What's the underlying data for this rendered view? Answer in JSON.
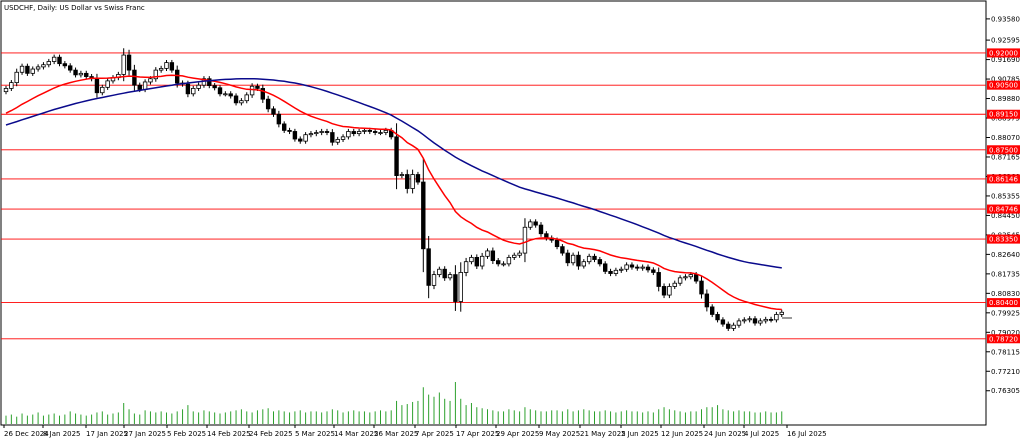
{
  "chart_data": {
    "type": "candlestick",
    "title": "USDCHF, Daily:  US Dollar vs Swiss Franc",
    "ylim": [
      0.7555,
      0.939
    ],
    "y_ticks": [
      "0.93580",
      "0.92595",
      "0.91690",
      "0.90785",
      "0.89880",
      "0.88975",
      "0.88070",
      "0.87165",
      "0.86260",
      "0.85355",
      "0.84450",
      "0.83545",
      "0.82640",
      "0.81735",
      "0.80830",
      "0.79925",
      "0.79020",
      "0.78115",
      "0.77210",
      "0.76305"
    ],
    "x_ticks": [
      "26 Dec 2024",
      "8 Jan 2025",
      "17 Jan 2025",
      "27 Jan 2025",
      "5 Feb 2025",
      "14 Feb 2025",
      "24 Feb 2025",
      "5 Mar 2025",
      "14 Mar 2025",
      "26 Mar 2025",
      "7 Apr 2025",
      "17 Apr 2025",
      "29 Apr 2025",
      "9 May 2025",
      "21 May 2025",
      "2 Jun 2025",
      "12 Jun 2025",
      "24 Jun 2025",
      "4 Jul 2025",
      "16 Jul 2025"
    ],
    "levels": [
      {
        "label": "0.92000",
        "value": 0.92
      },
      {
        "label": "0.90500",
        "value": 0.905
      },
      {
        "label": "0.89150",
        "value": 0.8915
      },
      {
        "label": "0.87500",
        "value": 0.875
      },
      {
        "label": "0.86146",
        "value": 0.86146
      },
      {
        "label": "0.84746",
        "value": 0.84746
      },
      {
        "label": "0.83350",
        "value": 0.8335
      },
      {
        "label": "0.80400",
        "value": 0.804
      },
      {
        "label": "0.78720",
        "value": 0.7872
      }
    ],
    "price_close": [
      0.9035,
      0.9062,
      0.911,
      0.9138,
      0.9105,
      0.9125,
      0.9135,
      0.9145,
      0.916,
      0.918,
      0.915,
      0.914,
      0.912,
      0.9098,
      0.9105,
      0.909,
      0.908,
      0.9015,
      0.904,
      0.907,
      0.9085,
      0.91,
      0.919,
      0.912,
      0.905,
      0.903,
      0.9065,
      0.908,
      0.912,
      0.9128,
      0.9155,
      0.912,
      0.906,
      0.9055,
      0.901,
      0.9035,
      0.905,
      0.908,
      0.9048,
      0.9038,
      0.901,
      0.901,
      0.9,
      0.8968,
      0.8978,
      0.9005,
      0.9045,
      0.9035,
      0.8985,
      0.894,
      0.8915,
      0.887,
      0.884,
      0.8835,
      0.88,
      0.879,
      0.882,
      0.8825,
      0.883,
      0.8835,
      0.883,
      0.8785,
      0.8798,
      0.881,
      0.8835,
      0.8825,
      0.8835,
      0.884,
      0.8835,
      0.883,
      0.883,
      0.884,
      0.881,
      0.863,
      0.8635,
      0.857,
      0.8635,
      0.86,
      0.829,
      0.812,
      0.817,
      0.8195,
      0.8155,
      0.817,
      0.8045,
      0.818,
      0.823,
      0.825,
      0.821,
      0.8255,
      0.828,
      0.8235,
      0.822,
      0.822,
      0.825,
      0.826,
      0.827,
      0.839,
      0.8415,
      0.84,
      0.836,
      0.834,
      0.833,
      0.83,
      0.827,
      0.8225,
      0.826,
      0.821,
      0.823,
      0.8255,
      0.824,
      0.822,
      0.8185,
      0.8175,
      0.819,
      0.8195,
      0.8215,
      0.8205,
      0.82,
      0.8205,
      0.8192,
      0.818,
      0.8115,
      0.8075,
      0.8115,
      0.813,
      0.8155,
      0.816,
      0.817,
      0.814,
      0.808,
      0.802,
      0.7985,
      0.796,
      0.794,
      0.792,
      0.7935,
      0.7955,
      0.796,
      0.7965,
      0.7945,
      0.7955,
      0.7962,
      0.796,
      0.7985,
      0.7995
    ],
    "series": [
      {
        "name": "",
        "color": "#ff0000",
        "values": [
          0.892,
          0.8932,
          0.8946,
          0.8961,
          0.8974,
          0.8988,
          0.9001,
          0.9013,
          0.9025,
          0.9037,
          0.9047,
          0.9055,
          0.9062,
          0.9068,
          0.9073,
          0.9078,
          0.9082,
          0.9082,
          0.9082,
          0.9083,
          0.9085,
          0.9087,
          0.909,
          0.9092,
          0.9091,
          0.9088,
          0.9087,
          0.9086,
          0.9089,
          0.9091,
          0.9095,
          0.9096,
          0.9095,
          0.9093,
          0.9087,
          0.9083,
          0.9079,
          0.9076,
          0.9072,
          0.9068,
          0.9063,
          0.9057,
          0.905,
          0.9042,
          0.9036,
          0.9031,
          0.903,
          0.9028,
          0.9023,
          0.9014,
          0.9003,
          0.899,
          0.8975,
          0.896,
          0.8944,
          0.8929,
          0.8917,
          0.8906,
          0.8897,
          0.8889,
          0.8882,
          0.8871,
          0.8864,
          0.8858,
          0.8856,
          0.8853,
          0.8851,
          0.885,
          0.8849,
          0.8847,
          0.8845,
          0.8845,
          0.8842,
          0.8823,
          0.8806,
          0.8783,
          0.8769,
          0.8752,
          0.8711,
          0.8657,
          0.8614,
          0.8576,
          0.8538,
          0.8505,
          0.8463,
          0.8439,
          0.8422,
          0.8408,
          0.839,
          0.8377,
          0.8368,
          0.8355,
          0.8342,
          0.833,
          0.8322,
          0.8316,
          0.8312,
          0.832,
          0.833,
          0.8337,
          0.834,
          0.834,
          0.8339,
          0.8335,
          0.8326,
          0.8315,
          0.831,
          0.83,
          0.8293,
          0.829,
          0.8286,
          0.828,
          0.8271,
          0.8261,
          0.8254,
          0.8248,
          0.8245,
          0.824,
          0.8236,
          0.8233,
          0.8229,
          0.8224,
          0.8213,
          0.8199,
          0.819,
          0.8184,
          0.8181,
          0.8179,
          0.8178,
          0.8174,
          0.8164,
          0.815,
          0.8134,
          0.8116,
          0.8098,
          0.808,
          0.8066,
          0.8055,
          0.8046,
          0.8039,
          0.8031,
          0.8025,
          0.8019,
          0.8013,
          0.801,
          0.8008
        ]
      },
      {
        "name": "",
        "color": "#0a0a8c",
        "values": [
          0.8865,
          0.8873,
          0.8881,
          0.8889,
          0.8897,
          0.8905,
          0.8913,
          0.8921,
          0.8929,
          0.8937,
          0.8944,
          0.8951,
          0.8958,
          0.8965,
          0.8971,
          0.8977,
          0.8983,
          0.8988,
          0.8993,
          0.8998,
          0.9003,
          0.9008,
          0.9013,
          0.9018,
          0.9022,
          0.9026,
          0.903,
          0.9034,
          0.9038,
          0.9042,
          0.9046,
          0.905,
          0.9054,
          0.9057,
          0.906,
          0.9063,
          0.9066,
          0.9069,
          0.9071,
          0.9073,
          0.9075,
          0.9077,
          0.9078,
          0.9079,
          0.908,
          0.908,
          0.908,
          0.9079,
          0.9078,
          0.9076,
          0.9074,
          0.9071,
          0.9068,
          0.9064,
          0.906,
          0.9055,
          0.9049,
          0.9043,
          0.9036,
          0.9029,
          0.9021,
          0.9013,
          0.9005,
          0.8996,
          0.8987,
          0.8978,
          0.8969,
          0.896,
          0.8951,
          0.8942,
          0.8932,
          0.8922,
          0.8911,
          0.8897,
          0.8883,
          0.8868,
          0.8853,
          0.8838,
          0.882,
          0.8801,
          0.8782,
          0.8765,
          0.8748,
          0.8732,
          0.8716,
          0.8702,
          0.8689,
          0.8676,
          0.8664,
          0.8652,
          0.8641,
          0.863,
          0.8619,
          0.8608,
          0.8597,
          0.8587,
          0.8576,
          0.8568,
          0.8561,
          0.8554,
          0.8547,
          0.854,
          0.8533,
          0.8526,
          0.8518,
          0.851,
          0.8503,
          0.8495,
          0.8487,
          0.848,
          0.8472,
          0.8463,
          0.8455,
          0.8446,
          0.8438,
          0.8429,
          0.842,
          0.8411,
          0.8402,
          0.8392,
          0.8383,
          0.8373,
          0.8363,
          0.8352,
          0.8342,
          0.8334,
          0.8325,
          0.8317,
          0.8309,
          0.8301,
          0.8292,
          0.8283,
          0.8275,
          0.8266,
          0.8258,
          0.825,
          0.8243,
          0.8236,
          0.823,
          0.8225,
          0.8221,
          0.8217,
          0.8213,
          0.8209,
          0.8205,
          0.8201
        ]
      }
    ],
    "volume": [
      8,
      9,
      7,
      10,
      8,
      9,
      11,
      8,
      9,
      10,
      8,
      9,
      12,
      10,
      9,
      8,
      9,
      11,
      12,
      9,
      10,
      11,
      20,
      14,
      10,
      9,
      13,
      12,
      11,
      12,
      11,
      10,
      12,
      14,
      18,
      12,
      11,
      13,
      12,
      11,
      10,
      11,
      12,
      13,
      14,
      12,
      11,
      13,
      14,
      15,
      12,
      13,
      12,
      11,
      12,
      13,
      11,
      12,
      12,
      11,
      12,
      14,
      13,
      11,
      12,
      13,
      12,
      12,
      11,
      12,
      13,
      12,
      13,
      22,
      18,
      19,
      21,
      22,
      35,
      28,
      26,
      30,
      24,
      22,
      40,
      24,
      18,
      20,
      16,
      15,
      14,
      13,
      12,
      12,
      14,
      13,
      12,
      16,
      14,
      13,
      12,
      12,
      13,
      13,
      12,
      14,
      12,
      13,
      14,
      13,
      12,
      12,
      13,
      12,
      11,
      12,
      13,
      12,
      12,
      11,
      12,
      11,
      14,
      16,
      14,
      13,
      12,
      11,
      12,
      12,
      14,
      16,
      16,
      18,
      14,
      13,
      12,
      13,
      12,
      12,
      11,
      11,
      12,
      11,
      11,
      12
    ],
    "volume_max": 40
  }
}
